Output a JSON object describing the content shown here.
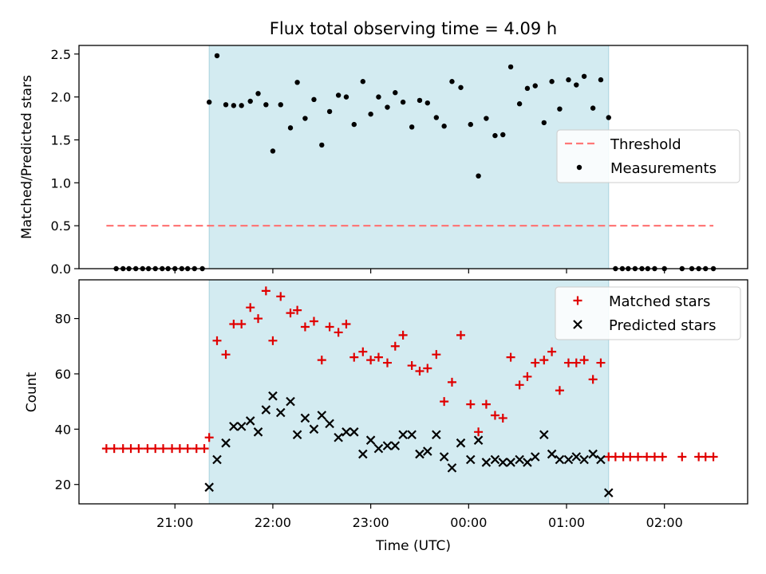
{
  "chart_data": {
    "title": "Flux total observing time = 4.09 h",
    "xlabel": "Time (UTC)",
    "x_ticks": [
      "21:00",
      "22:00",
      "23:00",
      "00:00",
      "01:00",
      "02:00"
    ],
    "x_tick_hours": [
      21,
      22,
      23,
      24,
      25,
      26
    ],
    "x_range_hours": [
      20.02,
      26.85
    ],
    "observing_window_hours": [
      21.35,
      25.43
    ],
    "colors": {
      "window": "#d3ebf1",
      "window_edge": "#a9d3df",
      "threshold": "#ff7878",
      "matched": "#e00000",
      "predicted": "#000000"
    },
    "panels": [
      {
        "type": "scatter",
        "ylabel": "Matched/Predicted stars",
        "ylim": [
          0,
          2.6
        ],
        "yticks": [
          "0.0",
          "0.5",
          "1.0",
          "1.5",
          "2.0",
          "2.5"
        ],
        "ytick_values": [
          0,
          0.5,
          1.0,
          1.5,
          2.0,
          2.5
        ],
        "threshold": 0.5,
        "legend": [
          "Threshold",
          "Measurements"
        ],
        "legend_loc": "center-right",
        "series": [
          {
            "name": "Measurements",
            "marker": "dot",
            "points": [
              [
                20.4,
                0
              ],
              [
                20.47,
                0
              ],
              [
                20.53,
                0
              ],
              [
                20.6,
                0
              ],
              [
                20.67,
                0
              ],
              [
                20.73,
                0
              ],
              [
                20.8,
                0
              ],
              [
                20.87,
                0
              ],
              [
                20.93,
                0
              ],
              [
                21.0,
                0
              ],
              [
                21.07,
                0
              ],
              [
                21.13,
                0
              ],
              [
                21.2,
                0
              ],
              [
                21.28,
                0
              ],
              [
                21.35,
                1.94
              ],
              [
                21.43,
                2.48
              ],
              [
                21.52,
                1.91
              ],
              [
                21.6,
                1.9
              ],
              [
                21.68,
                1.9
              ],
              [
                21.77,
                1.95
              ],
              [
                21.85,
                2.04
              ],
              [
                21.93,
                1.91
              ],
              [
                22.0,
                1.37
              ],
              [
                22.08,
                1.91
              ],
              [
                22.18,
                1.64
              ],
              [
                22.25,
                2.17
              ],
              [
                22.33,
                1.75
              ],
              [
                22.42,
                1.97
              ],
              [
                22.5,
                1.44
              ],
              [
                22.58,
                1.83
              ],
              [
                22.67,
                2.02
              ],
              [
                22.75,
                2.0
              ],
              [
                22.83,
                1.68
              ],
              [
                22.92,
                2.18
              ],
              [
                23.0,
                1.8
              ],
              [
                23.08,
                2.0
              ],
              [
                23.17,
                1.88
              ],
              [
                23.25,
                2.05
              ],
              [
                23.33,
                1.94
              ],
              [
                23.42,
                1.65
              ],
              [
                23.5,
                1.96
              ],
              [
                23.58,
                1.93
              ],
              [
                23.67,
                1.76
              ],
              [
                23.75,
                1.66
              ],
              [
                23.83,
                2.18
              ],
              [
                23.92,
                2.11
              ],
              [
                24.02,
                1.68
              ],
              [
                24.1,
                1.08
              ],
              [
                24.18,
                1.75
              ],
              [
                24.27,
                1.55
              ],
              [
                24.35,
                1.56
              ],
              [
                24.43,
                2.35
              ],
              [
                24.52,
                1.92
              ],
              [
                24.6,
                2.1
              ],
              [
                24.68,
                2.13
              ],
              [
                24.77,
                1.7
              ],
              [
                24.85,
                2.18
              ],
              [
                24.93,
                1.86
              ],
              [
                25.02,
                2.2
              ],
              [
                25.1,
                2.14
              ],
              [
                25.18,
                2.24
              ],
              [
                25.27,
                1.87
              ],
              [
                25.35,
                2.2
              ],
              [
                25.43,
                1.76
              ],
              [
                25.5,
                0
              ],
              [
                25.57,
                0
              ],
              [
                25.63,
                0
              ],
              [
                25.7,
                0
              ],
              [
                25.77,
                0
              ],
              [
                25.83,
                0
              ],
              [
                25.9,
                0
              ],
              [
                26.0,
                0
              ],
              [
                26.18,
                0
              ],
              [
                26.28,
                0
              ],
              [
                26.35,
                0
              ],
              [
                26.42,
                0
              ],
              [
                26.5,
                0
              ]
            ]
          }
        ]
      },
      {
        "type": "scatter",
        "ylabel": "Count",
        "ylim": [
          13,
          94
        ],
        "yticks": [
          "20",
          "40",
          "60",
          "80"
        ],
        "ytick_values": [
          20,
          40,
          60,
          80
        ],
        "legend": [
          "Matched stars",
          "Predicted stars"
        ],
        "legend_loc": "top-right",
        "series": [
          {
            "name": "Matched stars",
            "marker": "plus",
            "points": [
              [
                20.3,
                33
              ],
              [
                20.38,
                33
              ],
              [
                20.47,
                33
              ],
              [
                20.55,
                33
              ],
              [
                20.63,
                33
              ],
              [
                20.72,
                33
              ],
              [
                20.8,
                33
              ],
              [
                20.88,
                33
              ],
              [
                20.97,
                33
              ],
              [
                21.05,
                33
              ],
              [
                21.13,
                33
              ],
              [
                21.22,
                33
              ],
              [
                21.3,
                33
              ],
              [
                21.35,
                37
              ],
              [
                21.43,
                72
              ],
              [
                21.52,
                67
              ],
              [
                21.6,
                78
              ],
              [
                21.68,
                78
              ],
              [
                21.77,
                84
              ],
              [
                21.85,
                80
              ],
              [
                21.93,
                90
              ],
              [
                22.0,
                72
              ],
              [
                22.08,
                88
              ],
              [
                22.18,
                82
              ],
              [
                22.25,
                83
              ],
              [
                22.33,
                77
              ],
              [
                22.42,
                79
              ],
              [
                22.5,
                65
              ],
              [
                22.58,
                77
              ],
              [
                22.67,
                75
              ],
              [
                22.75,
                78
              ],
              [
                22.83,
                66
              ],
              [
                22.92,
                68
              ],
              [
                23.0,
                65
              ],
              [
                23.08,
                66
              ],
              [
                23.17,
                64
              ],
              [
                23.25,
                70
              ],
              [
                23.33,
                74
              ],
              [
                23.42,
                63
              ],
              [
                23.5,
                61
              ],
              [
                23.58,
                62
              ],
              [
                23.67,
                67
              ],
              [
                23.75,
                50
              ],
              [
                23.83,
                57
              ],
              [
                23.92,
                74
              ],
              [
                24.02,
                49
              ],
              [
                24.1,
                39
              ],
              [
                24.18,
                49
              ],
              [
                24.27,
                45
              ],
              [
                24.35,
                44
              ],
              [
                24.43,
                66
              ],
              [
                24.52,
                56
              ],
              [
                24.6,
                59
              ],
              [
                24.68,
                64
              ],
              [
                24.77,
                65
              ],
              [
                24.85,
                68
              ],
              [
                24.93,
                54
              ],
              [
                25.02,
                64
              ],
              [
                25.1,
                64
              ],
              [
                25.18,
                65
              ],
              [
                25.27,
                58
              ],
              [
                25.35,
                64
              ],
              [
                25.43,
                30
              ],
              [
                25.5,
                30
              ],
              [
                25.58,
                30
              ],
              [
                25.65,
                30
              ],
              [
                25.73,
                30
              ],
              [
                25.82,
                30
              ],
              [
                25.9,
                30
              ],
              [
                25.98,
                30
              ],
              [
                26.18,
                30
              ],
              [
                26.35,
                30
              ],
              [
                26.42,
                30
              ],
              [
                26.5,
                30
              ]
            ]
          },
          {
            "name": "Predicted stars",
            "marker": "x",
            "points": [
              [
                21.35,
                19
              ],
              [
                21.43,
                29
              ],
              [
                21.52,
                35
              ],
              [
                21.6,
                41
              ],
              [
                21.68,
                41
              ],
              [
                21.77,
                43
              ],
              [
                21.85,
                39
              ],
              [
                21.93,
                47
              ],
              [
                22.0,
                52
              ],
              [
                22.08,
                46
              ],
              [
                22.18,
                50
              ],
              [
                22.25,
                38
              ],
              [
                22.33,
                44
              ],
              [
                22.42,
                40
              ],
              [
                22.5,
                45
              ],
              [
                22.58,
                42
              ],
              [
                22.67,
                37
              ],
              [
                22.75,
                39
              ],
              [
                22.83,
                39
              ],
              [
                22.92,
                31
              ],
              [
                23.0,
                36
              ],
              [
                23.08,
                33
              ],
              [
                23.17,
                34
              ],
              [
                23.25,
                34
              ],
              [
                23.33,
                38
              ],
              [
                23.42,
                38
              ],
              [
                23.5,
                31
              ],
              [
                23.58,
                32
              ],
              [
                23.67,
                38
              ],
              [
                23.75,
                30
              ],
              [
                23.83,
                26
              ],
              [
                23.92,
                35
              ],
              [
                24.02,
                29
              ],
              [
                24.1,
                36
              ],
              [
                24.18,
                28
              ],
              [
                24.27,
                29
              ],
              [
                24.35,
                28
              ],
              [
                24.43,
                28
              ],
              [
                24.52,
                29
              ],
              [
                24.6,
                28
              ],
              [
                24.68,
                30
              ],
              [
                24.77,
                38
              ],
              [
                24.85,
                31
              ],
              [
                24.93,
                29
              ],
              [
                25.02,
                29
              ],
              [
                25.1,
                30
              ],
              [
                25.18,
                29
              ],
              [
                25.27,
                31
              ],
              [
                25.35,
                29
              ],
              [
                25.43,
                17
              ]
            ]
          }
        ]
      }
    ]
  }
}
